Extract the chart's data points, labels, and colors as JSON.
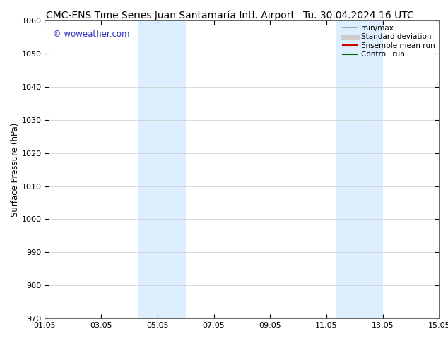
{
  "title_left": "CMC-ENS Time Series Juan Santamaría Intl. Airport",
  "title_right": "Tu. 30.04.2024 16 UTC",
  "ylabel": "Surface Pressure (hPa)",
  "xlim": [
    0,
    14
  ],
  "ylim": [
    970,
    1060
  ],
  "yticks": [
    970,
    980,
    990,
    1000,
    1010,
    1020,
    1030,
    1040,
    1050,
    1060
  ],
  "xtick_labels": [
    "01.05",
    "03.05",
    "05.05",
    "07.05",
    "09.05",
    "11.05",
    "13.05",
    "15.05"
  ],
  "xtick_positions": [
    0,
    2,
    4,
    6,
    8,
    10,
    12,
    14
  ],
  "background_color": "#ffffff",
  "plot_bg_color": "#ffffff",
  "shaded_bands": [
    {
      "xmin": 3.33,
      "xmax": 5.0,
      "color": "#ddeeff"
    },
    {
      "xmin": 10.33,
      "xmax": 12.0,
      "color": "#ddeeff"
    }
  ],
  "watermark_text": "© woweather.com",
  "watermark_color": "#3333bb",
  "legend_items": [
    {
      "label": "min/max",
      "color": "#aaaaaa",
      "lw": 1.5,
      "style": "solid"
    },
    {
      "label": "Standard deviation",
      "color": "#cccccc",
      "lw": 5,
      "style": "solid"
    },
    {
      "label": "Ensemble mean run",
      "color": "#cc0000",
      "lw": 1.5,
      "style": "solid"
    },
    {
      "label": "Controll run",
      "color": "#006600",
      "lw": 1.5,
      "style": "solid"
    }
  ],
  "title_fontsize": 10,
  "axis_label_fontsize": 8.5,
  "tick_fontsize": 8,
  "legend_fontsize": 7.5,
  "watermark_fontsize": 8.5
}
